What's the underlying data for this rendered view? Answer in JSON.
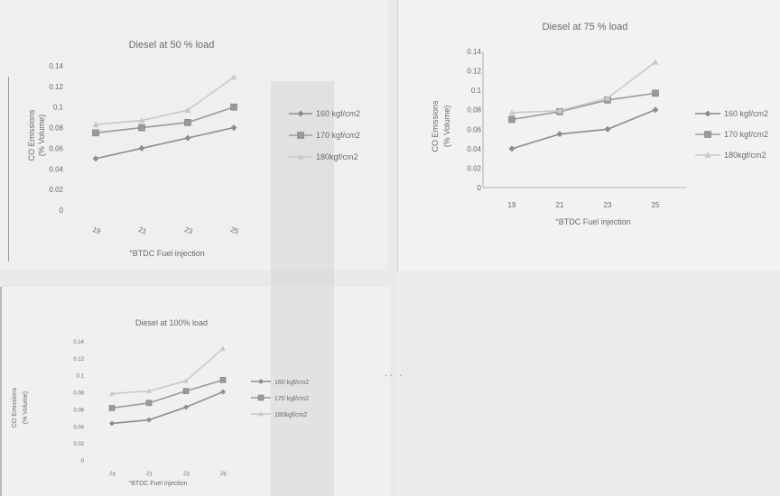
{
  "colors": {
    "background": "#e9e9e7",
    "panel": "#f1f1ef",
    "series_160": "#8d8d8d",
    "series_170": "#9a9a9a",
    "series_180": "#c8c8c8",
    "axis": "#9a9a9a",
    "text": "#6a6a6a"
  },
  "stray_mark": "·· ·",
  "chart_data": [
    {
      "type": "line",
      "title": "Diesel at 50 % load",
      "xlabel": "°BTDC Fuel injection",
      "ylabel": [
        "CO Emissions",
        "(% Volume)"
      ],
      "categories": [
        "19",
        "21",
        "23",
        "25"
      ],
      "yticks": [
        "0.14",
        "0.12",
        "0.1",
        "0.08",
        "0.06",
        "0.04",
        "0.02",
        "0"
      ],
      "ylim": [
        0,
        0.14
      ],
      "legend_position": "right",
      "series": [
        {
          "name": "160 kgf/cm2",
          "values": [
            0.05,
            0.06,
            0.07,
            0.08
          ],
          "marker": "diamond",
          "color": "#8d8d8d"
        },
        {
          "name": "170 kgf/cm2",
          "values": [
            0.075,
            0.08,
            0.085,
            0.1
          ],
          "marker": "square",
          "color": "#9a9a9a"
        },
        {
          "name": "180kgf/cm2",
          "values": [
            0.083,
            0.087,
            0.097,
            0.129
          ],
          "marker": "triangle",
          "color": "#c8c8c8"
        }
      ]
    },
    {
      "type": "line",
      "title": "Diesel at 75 % load",
      "xlabel": "°BTDC Fuel injection",
      "ylabel": [
        "CO Emissions",
        "(% Volume)"
      ],
      "categories": [
        "19",
        "21",
        "23",
        "25"
      ],
      "yticks": [
        "0.14",
        "0.12",
        "0.1",
        "0.08",
        "0.06",
        "0.04",
        "0.02",
        "0"
      ],
      "ylim": [
        0,
        0.14
      ],
      "legend_position": "right",
      "series": [
        {
          "name": "160 kgf/cm2",
          "values": [
            0.04,
            0.055,
            0.06,
            0.08
          ],
          "marker": "diamond",
          "color": "#8d8d8d"
        },
        {
          "name": "170 kgf/cm2",
          "values": [
            0.07,
            0.078,
            0.09,
            0.097
          ],
          "marker": "square",
          "color": "#9a9a9a"
        },
        {
          "name": "180kgf/cm2",
          "values": [
            0.077,
            0.079,
            0.092,
            0.129
          ],
          "marker": "triangle",
          "color": "#c8c8c8"
        }
      ]
    },
    {
      "type": "line",
      "title": "Diesel at 100% load",
      "xlabel": "°BTDC Fuel injection",
      "ylabel": [
        "CO Emissions",
        "(% Volume)"
      ],
      "categories": [
        "19",
        "21",
        "23",
        "25"
      ],
      "yticks": [
        "0.14",
        "0.12",
        "0.1",
        "0.08",
        "0.06",
        "0.04",
        "0.02",
        "0"
      ],
      "ylim": [
        0,
        0.14
      ],
      "legend_position": "right",
      "series": [
        {
          "name": "160 kgf/cm2",
          "values": [
            0.043,
            0.047,
            0.062,
            0.08
          ],
          "marker": "diamond",
          "color": "#8d8d8d"
        },
        {
          "name": "170 kgf/cm2",
          "values": [
            0.061,
            0.067,
            0.081,
            0.094
          ],
          "marker": "square",
          "color": "#9a9a9a"
        },
        {
          "name": "180kgf/cm2",
          "values": [
            0.078,
            0.081,
            0.093,
            0.131
          ],
          "marker": "triangle",
          "color": "#c8c8c8"
        }
      ]
    }
  ]
}
